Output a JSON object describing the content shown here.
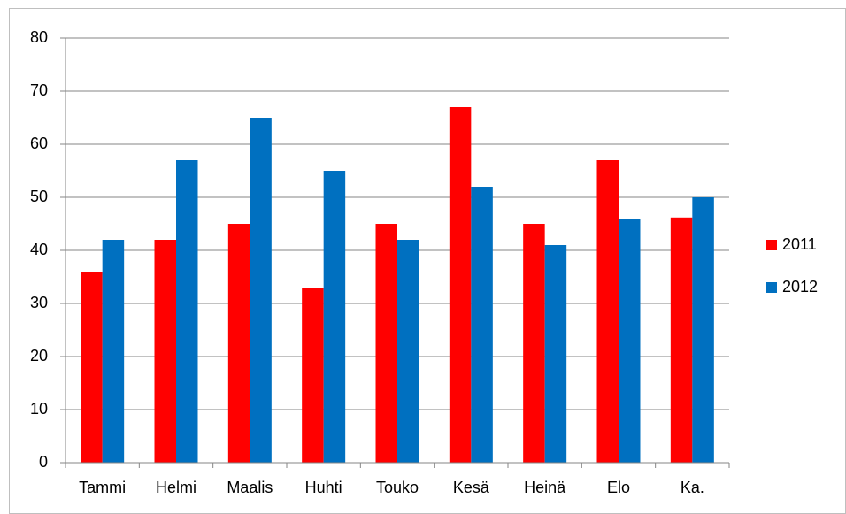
{
  "chart_data": {
    "type": "bar",
    "categories": [
      "Tammi",
      "Helmi",
      "Maalis",
      "Huhti",
      "Touko",
      "Kesä",
      "Heinä",
      "Elo",
      "Ka."
    ],
    "series": [
      {
        "name": "2011",
        "color": "#ff0000",
        "values": [
          36,
          42,
          45,
          33,
          45,
          67,
          45,
          57,
          46.2
        ]
      },
      {
        "name": "2012",
        "color": "#0070c0",
        "values": [
          42,
          57,
          65,
          55,
          42,
          52,
          41,
          46,
          50
        ]
      }
    ],
    "ylim": [
      0,
      80
    ],
    "yticks": [
      0,
      10,
      20,
      30,
      40,
      50,
      60,
      70,
      80
    ],
    "grid": true,
    "legend": "right"
  }
}
